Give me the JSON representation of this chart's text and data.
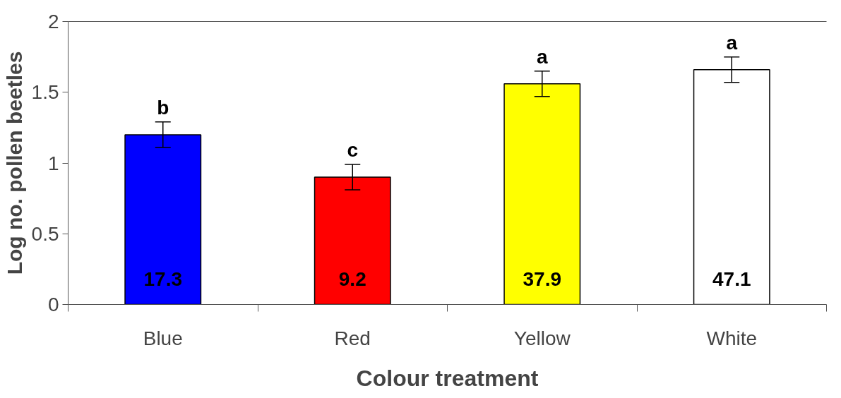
{
  "chart_data": {
    "type": "bar",
    "xlabel": "Colour treatment",
    "ylabel": "Log no. pollen beetles",
    "categories": [
      "Blue",
      "Red",
      "Yellow",
      "White"
    ],
    "values": [
      1.2,
      0.9,
      1.56,
      1.66
    ],
    "errors": [
      0.09,
      0.09,
      0.09,
      0.09
    ],
    "colors": [
      "#0000ff",
      "#ff0000",
      "#ffff00",
      "#ffffff"
    ],
    "ylim": [
      0,
      2
    ],
    "yticks": [
      0,
      0.5,
      1,
      1.5,
      2
    ],
    "grid": false,
    "annotations": [
      "b",
      "c",
      "a",
      "a",
      "17.3",
      "9.2",
      "37.9",
      "47.1"
    ]
  }
}
